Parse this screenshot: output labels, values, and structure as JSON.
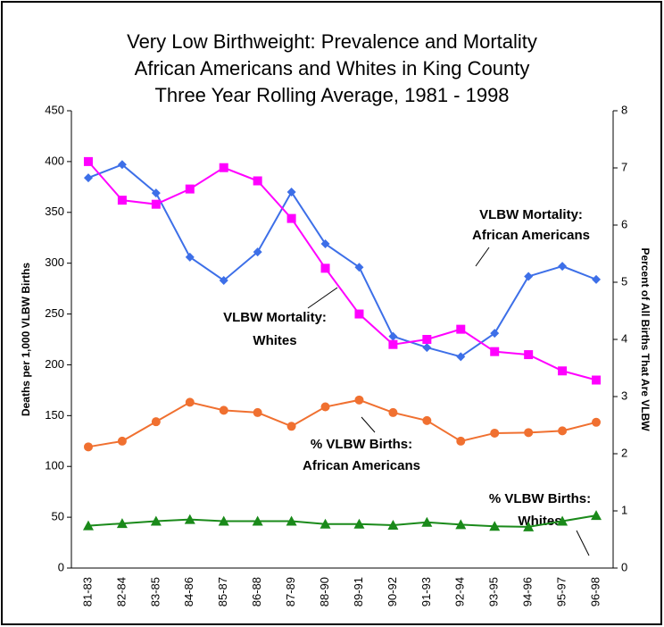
{
  "chart_data": {
    "type": "line",
    "title": [
      "Very Low Birthweight:  Prevalence and Mortality",
      "African Americans and Whites in King County",
      "Three Year Rolling Average, 1981 - 1998"
    ],
    "ylabel": "Deaths per 1,000 VLBW Births",
    "y2label": "Percent of All Births That Are VLBW",
    "categories": [
      "81-83",
      "82-84",
      "83-85",
      "84-86",
      "85-87",
      "86-88",
      "87-89",
      "88-90",
      "89-91",
      "90-92",
      "91-93",
      "92-94",
      "93-95",
      "94-96",
      "95-97",
      "96-98"
    ],
    "series": [
      {
        "name": "VLBW Mortality: African Americans",
        "color": "#3d6fe8",
        "marker": "diamond",
        "axis": "y",
        "values": [
          384,
          397,
          369,
          306,
          283,
          311,
          370,
          319,
          296,
          228,
          217,
          208,
          231,
          287,
          297,
          284
        ]
      },
      {
        "name": "VLBW Mortality: Whites",
        "color": "#ff00ff",
        "marker": "square",
        "axis": "y",
        "values": [
          400,
          362,
          358,
          373,
          394,
          381,
          344,
          295,
          250,
          220,
          225,
          235,
          213,
          210,
          194,
          185
        ]
      },
      {
        "name": "% VLBW Births: African Americans",
        "color": "#f07030",
        "marker": "circle",
        "axis": "y2",
        "values": [
          2.12,
          2.22,
          2.56,
          2.9,
          2.76,
          2.72,
          2.48,
          2.82,
          2.94,
          2.72,
          2.58,
          2.22,
          2.36,
          2.37,
          2.4,
          2.55
        ]
      },
      {
        "name": "% VLBW Births: Whites",
        "color": "#1a8a1a",
        "marker": "triangle",
        "axis": "y2",
        "values": [
          0.74,
          0.78,
          0.82,
          0.85,
          0.82,
          0.82,
          0.82,
          0.77,
          0.77,
          0.75,
          0.8,
          0.76,
          0.73,
          0.72,
          0.82,
          0.92
        ]
      }
    ],
    "annotations": [
      [
        "VLBW Mortality:",
        "African Americans"
      ],
      [
        "VLBW Mortality:",
        "Whites"
      ],
      [
        "% VLBW Births:",
        "African Americans"
      ],
      [
        "% VLBW Births:",
        "Whites"
      ]
    ],
    "ylim": [
      0,
      450
    ],
    "yticks": [
      0,
      50,
      100,
      150,
      200,
      250,
      300,
      350,
      400,
      450
    ],
    "y2lim": [
      0,
      8
    ],
    "y2ticks": [
      0,
      1,
      2,
      3,
      4,
      5,
      6,
      7,
      8
    ],
    "grid": false
  }
}
